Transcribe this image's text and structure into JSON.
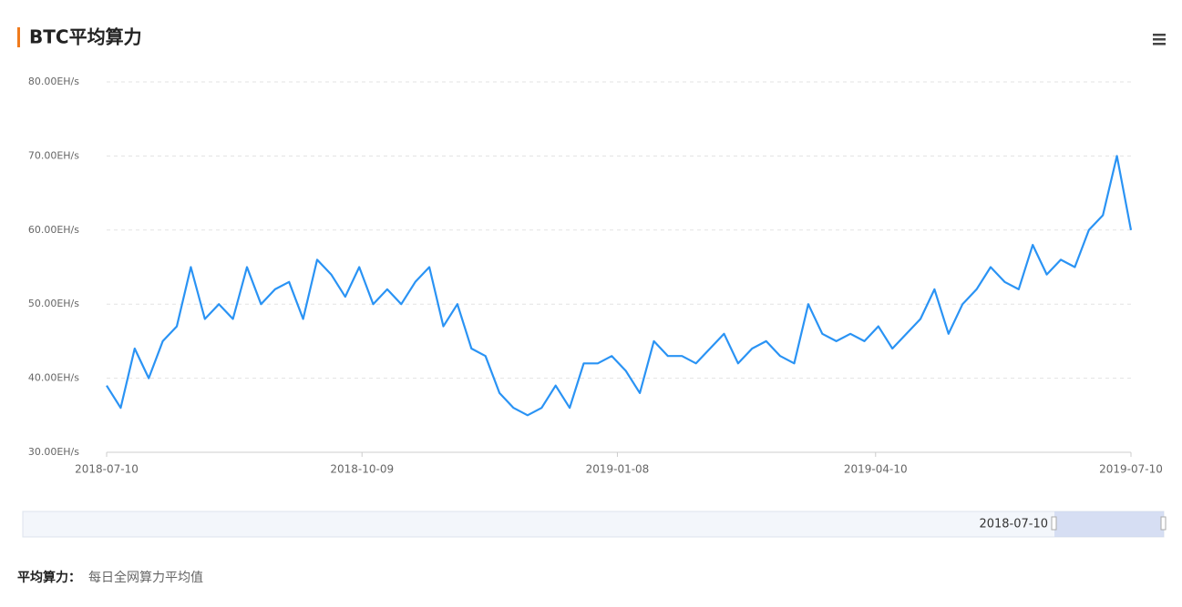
{
  "chart_data": {
    "type": "line",
    "title": "BTC平均算力",
    "x": [
      "2018-07-10",
      "2018-07-15",
      "2018-07-20",
      "2018-07-25",
      "2018-07-30",
      "2018-08-04",
      "2018-08-09",
      "2018-08-14",
      "2018-08-19",
      "2018-08-24",
      "2018-08-29",
      "2018-09-03",
      "2018-09-08",
      "2018-09-13",
      "2018-09-18",
      "2018-09-23",
      "2018-09-28",
      "2018-10-03",
      "2018-10-08",
      "2018-10-13",
      "2018-10-18",
      "2018-10-23",
      "2018-10-28",
      "2018-11-02",
      "2018-11-07",
      "2018-11-12",
      "2018-11-17",
      "2018-11-22",
      "2018-11-27",
      "2018-12-02",
      "2018-12-07",
      "2018-12-12",
      "2018-12-17",
      "2018-12-22",
      "2018-12-27",
      "2019-01-01",
      "2019-01-06",
      "2019-01-11",
      "2019-01-16",
      "2019-01-21",
      "2019-01-26",
      "2019-01-31",
      "2019-02-05",
      "2019-02-10",
      "2019-02-15",
      "2019-02-20",
      "2019-02-25",
      "2019-03-02",
      "2019-03-07",
      "2019-03-12",
      "2019-03-17",
      "2019-03-22",
      "2019-03-27",
      "2019-04-01",
      "2019-04-06",
      "2019-04-11",
      "2019-04-16",
      "2019-04-21",
      "2019-04-26",
      "2019-05-01",
      "2019-05-06",
      "2019-05-11",
      "2019-05-16",
      "2019-05-21",
      "2019-05-26",
      "2019-05-31",
      "2019-06-05",
      "2019-06-10",
      "2019-06-15",
      "2019-06-20",
      "2019-06-25",
      "2019-06-30",
      "2019-07-05",
      "2019-07-10"
    ],
    "series": [
      {
        "color": "#2a93f4",
        "values": [
          39,
          36,
          44,
          40,
          45,
          47,
          55,
          48,
          50,
          48,
          55,
          50,
          52,
          53,
          48,
          56,
          54,
          51,
          55,
          50,
          52,
          50,
          53,
          55,
          47,
          50,
          44,
          43,
          38,
          36,
          35,
          36,
          39,
          36,
          42,
          42,
          43,
          41,
          38,
          45,
          43,
          43,
          42,
          44,
          46,
          42,
          44,
          45,
          43,
          42,
          50,
          46,
          45,
          46,
          45,
          47,
          44,
          46,
          48,
          52,
          46,
          50,
          52,
          55,
          53,
          52,
          58,
          54,
          56,
          55,
          60,
          62,
          70,
          60
        ]
      }
    ],
    "xlim": [
      "2018-07-10",
      "2019-07-10"
    ],
    "xticks": [
      "2018-07-10",
      "2018-10-09",
      "2019-01-08",
      "2019-04-10",
      "2019-07-10"
    ],
    "ylim": [
      30,
      80
    ],
    "yticks": [
      {
        "value": 30,
        "label": "30.00EH/s"
      },
      {
        "value": 40,
        "label": "40.00EH/s"
      },
      {
        "value": 50,
        "label": "50.00EH/s"
      },
      {
        "value": 60,
        "label": "60.00EH/s"
      },
      {
        "value": 70,
        "label": "70.00EH/s"
      },
      {
        "value": 80,
        "label": "80.00EH/s"
      }
    ],
    "grid": true
  },
  "data_zoom": {
    "label": "2018-07-10"
  },
  "footnote": {
    "term": "平均算力：",
    "text": "每日全网算力平均值"
  }
}
